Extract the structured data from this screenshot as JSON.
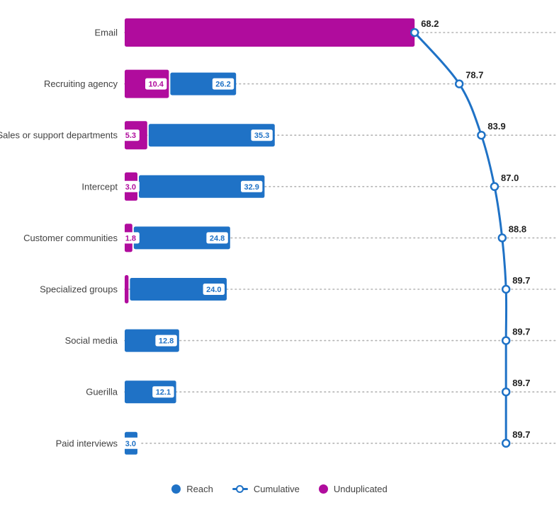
{
  "chart_data": {
    "type": "bar",
    "orientation": "horizontal",
    "title": "",
    "categories": [
      "Email",
      "Recruiting agency",
      "Sales or support departments",
      "Intercept",
      "Customer communities",
      "Specialized groups",
      "Social media",
      "Guerilla",
      "Paid interviews"
    ],
    "series": [
      {
        "name": "Reach",
        "type": "bar",
        "color": "#1f72c6",
        "values": [
          68.2,
          26.2,
          35.3,
          32.9,
          24.8,
          24.0,
          12.8,
          12.1,
          3.0
        ],
        "labels": [
          "",
          "26.2",
          "35.3",
          "32.9",
          "24.8",
          "24.0",
          "12.8",
          "12.1",
          "3.0"
        ]
      },
      {
        "name": "Unduplicated",
        "type": "bar",
        "color": "#b00c9d",
        "values": [
          68.2,
          10.4,
          5.3,
          3.0,
          1.8,
          0.9,
          0,
          0,
          0
        ],
        "labels": [
          "",
          "10.4",
          "5.3",
          "3.0",
          "1.8",
          "",
          "",
          "",
          ""
        ]
      },
      {
        "name": "Cumulative",
        "type": "line",
        "color": "#1f72c6",
        "marker": "open-circle",
        "values": [
          68.2,
          78.7,
          83.9,
          87.0,
          88.8,
          89.7,
          89.7,
          89.7,
          89.7
        ],
        "labels": [
          "68.2",
          "78.7",
          "83.9",
          "87.0",
          "88.8",
          "89.7",
          "89.7",
          "89.7",
          "89.7"
        ]
      }
    ],
    "xlim": [
      0,
      100
    ],
    "grid": "horizontal-dotted",
    "colors": {
      "reach_blue": "#1f72c6",
      "unduplicated_magenta": "#b00c9d",
      "cumulative_label_text": "#212121",
      "category_text": "#424242",
      "grid_dots": "#b3b3b3",
      "value_label_bg": "#ffffff"
    },
    "legend": {
      "position": "bottom",
      "items": [
        {
          "label": "Reach",
          "marker": "filled-circle",
          "color": "#1f72c6"
        },
        {
          "label": "Cumulative",
          "marker": "open-circle-line",
          "color": "#1f72c6"
        },
        {
          "label": "Unduplicated",
          "marker": "filled-circle",
          "color": "#b00c9d"
        }
      ]
    }
  }
}
